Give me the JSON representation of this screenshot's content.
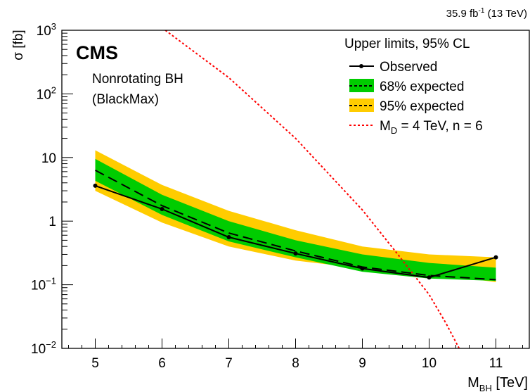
{
  "chart_data": {
    "type": "line",
    "top_right_label": "35.9 fb",
    "top_right_label_sup": "-1",
    "top_right_label_tail": " (13 TeV)",
    "experiment": "CMS",
    "model_line1": "Nonrotating BH",
    "model_line2": "(BlackMax)",
    "ylabel": "σ [fb]",
    "xlabel_main": "M",
    "xlabel_sub": "BH",
    "xlabel_tail": " [TeV]",
    "xlim": [
      4.5,
      11.5
    ],
    "ylim": [
      0.01,
      1000
    ],
    "yscale": "log",
    "x_ticks": [
      "5",
      "6",
      "7",
      "8",
      "9",
      "10",
      "11"
    ],
    "y_ticks": [
      {
        "value": 0.01,
        "base": "10",
        "exp": "−2"
      },
      {
        "value": 0.1,
        "base": "10",
        "exp": "−1"
      },
      {
        "value": 1,
        "base": "1",
        "exp": ""
      },
      {
        "value": 10,
        "base": "10",
        "exp": ""
      },
      {
        "value": 100,
        "base": "10",
        "exp": "2"
      },
      {
        "value": 1000,
        "base": "10",
        "exp": "3"
      }
    ],
    "legend_header": "Upper limits, 95% CL",
    "legend_observed": "Observed",
    "legend_68": "68% expected",
    "legend_95": "95% expected",
    "legend_model_main": "M",
    "legend_model_sub": "D",
    "legend_model_tail": " = 4 TeV, n = 6",
    "colors": {
      "band68": "#00cc00",
      "band95": "#ffcc00",
      "theory": "#ff0000",
      "line": "#000000"
    },
    "x": [
      5,
      6,
      7,
      8,
      9,
      10,
      11
    ],
    "observed": [
      3.6,
      1.55,
      0.56,
      0.31,
      0.18,
      0.13,
      0.27
    ],
    "expected": [
      6.3,
      1.75,
      0.65,
      0.34,
      0.19,
      0.14,
      0.12
    ],
    "band68_low": [
      4.3,
      1.25,
      0.48,
      0.27,
      0.16,
      0.125,
      0.115
    ],
    "band68_high": [
      9.5,
      2.6,
      1.0,
      0.5,
      0.3,
      0.22,
      0.185
    ],
    "band95_low": [
      3.0,
      0.95,
      0.4,
      0.24,
      0.18,
      0.15,
      0.11
    ],
    "band95_high": [
      13.0,
      3.7,
      1.45,
      0.72,
      0.4,
      0.3,
      0.27
    ],
    "theory_x": [
      6.05,
      7.0,
      8.0,
      9.0,
      9.5,
      10.0,
      10.25,
      10.45
    ],
    "theory_y": [
      1000,
      180,
      20,
      1.5,
      0.33,
      0.07,
      0.025,
      0.01
    ]
  }
}
